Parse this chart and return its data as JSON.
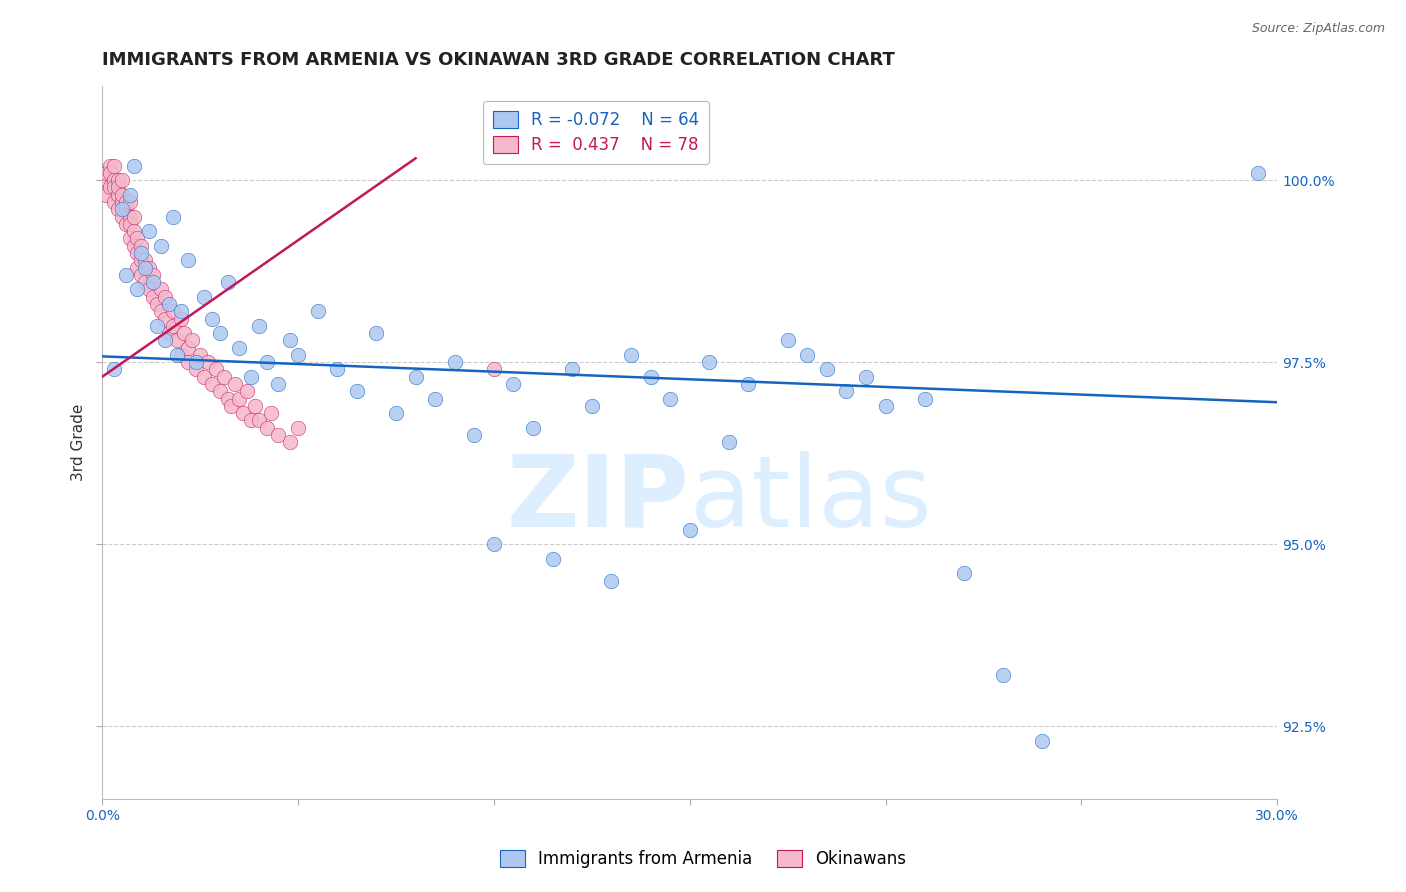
{
  "title": "IMMIGRANTS FROM ARMENIA VS OKINAWAN 3RD GRADE CORRELATION CHART",
  "source_text": "Source: ZipAtlas.com",
  "ylabel": "3rd Grade",
  "xlim": [
    0.0,
    0.3
  ],
  "ylim": [
    91.5,
    101.3
  ],
  "xticks": [
    0.0,
    0.05,
    0.1,
    0.15,
    0.2,
    0.25,
    0.3
  ],
  "xtick_labels": [
    "0.0%",
    "",
    "",
    "",
    "",
    "",
    "30.0%"
  ],
  "ytick_positions": [
    92.5,
    95.0,
    97.5,
    100.0
  ],
  "ytick_labels": [
    "92.5%",
    "95.0%",
    "97.5%",
    "100.0%"
  ],
  "blue_scatter_x": [
    0.003,
    0.005,
    0.006,
    0.007,
    0.008,
    0.009,
    0.01,
    0.011,
    0.012,
    0.013,
    0.014,
    0.015,
    0.016,
    0.017,
    0.018,
    0.019,
    0.02,
    0.022,
    0.024,
    0.026,
    0.028,
    0.03,
    0.032,
    0.035,
    0.038,
    0.04,
    0.042,
    0.045,
    0.048,
    0.05,
    0.055,
    0.06,
    0.065,
    0.07,
    0.075,
    0.08,
    0.085,
    0.09,
    0.095,
    0.1,
    0.105,
    0.11,
    0.115,
    0.12,
    0.125,
    0.13,
    0.135,
    0.14,
    0.145,
    0.15,
    0.155,
    0.16,
    0.165,
    0.175,
    0.18,
    0.185,
    0.19,
    0.195,
    0.2,
    0.21,
    0.22,
    0.23,
    0.24,
    0.295
  ],
  "blue_scatter_y": [
    97.4,
    99.6,
    98.7,
    99.8,
    100.2,
    98.5,
    99.0,
    98.8,
    99.3,
    98.6,
    98.0,
    99.1,
    97.8,
    98.3,
    99.5,
    97.6,
    98.2,
    98.9,
    97.5,
    98.4,
    98.1,
    97.9,
    98.6,
    97.7,
    97.3,
    98.0,
    97.5,
    97.2,
    97.8,
    97.6,
    98.2,
    97.4,
    97.1,
    97.9,
    96.8,
    97.3,
    97.0,
    97.5,
    96.5,
    95.0,
    97.2,
    96.6,
    94.8,
    97.4,
    96.9,
    94.5,
    97.6,
    97.3,
    97.0,
    95.2,
    97.5,
    96.4,
    97.2,
    97.8,
    97.6,
    97.4,
    97.1,
    97.3,
    96.9,
    97.0,
    94.6,
    93.2,
    92.3,
    100.1
  ],
  "pink_scatter_x": [
    0.001,
    0.001,
    0.001,
    0.002,
    0.002,
    0.002,
    0.003,
    0.003,
    0.003,
    0.003,
    0.004,
    0.004,
    0.004,
    0.004,
    0.005,
    0.005,
    0.005,
    0.005,
    0.006,
    0.006,
    0.006,
    0.007,
    0.007,
    0.007,
    0.007,
    0.008,
    0.008,
    0.008,
    0.009,
    0.009,
    0.009,
    0.01,
    0.01,
    0.01,
    0.011,
    0.011,
    0.012,
    0.012,
    0.013,
    0.013,
    0.014,
    0.015,
    0.015,
    0.016,
    0.016,
    0.017,
    0.018,
    0.018,
    0.019,
    0.02,
    0.02,
    0.021,
    0.022,
    0.022,
    0.023,
    0.024,
    0.025,
    0.026,
    0.027,
    0.028,
    0.029,
    0.03,
    0.031,
    0.032,
    0.033,
    0.034,
    0.035,
    0.036,
    0.037,
    0.038,
    0.039,
    0.04,
    0.042,
    0.043,
    0.045,
    0.048,
    0.05,
    0.1
  ],
  "pink_scatter_y": [
    100.0,
    99.8,
    100.1,
    100.2,
    99.9,
    100.1,
    100.0,
    99.7,
    99.9,
    100.2,
    99.8,
    100.0,
    99.6,
    99.9,
    99.7,
    99.5,
    99.8,
    100.0,
    99.6,
    99.4,
    99.7,
    99.5,
    99.2,
    99.4,
    99.7,
    99.3,
    99.1,
    99.5,
    99.0,
    98.8,
    99.2,
    98.9,
    98.7,
    99.1,
    98.6,
    98.9,
    98.5,
    98.8,
    98.4,
    98.7,
    98.3,
    98.5,
    98.2,
    98.4,
    98.1,
    97.9,
    98.2,
    98.0,
    97.8,
    98.1,
    97.6,
    97.9,
    97.7,
    97.5,
    97.8,
    97.4,
    97.6,
    97.3,
    97.5,
    97.2,
    97.4,
    97.1,
    97.3,
    97.0,
    96.9,
    97.2,
    97.0,
    96.8,
    97.1,
    96.7,
    96.9,
    96.7,
    96.6,
    96.8,
    96.5,
    96.4,
    96.6,
    97.4
  ],
  "blue_line_x": [
    0.0,
    0.3
  ],
  "blue_line_y": [
    97.58,
    96.95
  ],
  "pink_line_x": [
    0.0,
    0.08
  ],
  "pink_line_y": [
    97.3,
    100.3
  ],
  "legend_blue_r": "-0.072",
  "legend_blue_n": "64",
  "legend_pink_r": "0.437",
  "legend_pink_n": "78",
  "blue_dot_color": "#adc8f0",
  "pink_dot_color": "#f5b8cb",
  "blue_line_color": "#1565c0",
  "pink_line_color": "#c2185b",
  "grid_color": "#cccccc",
  "watermark_color": "#ddeeff",
  "right_axis_color": "#1565c0",
  "title_fontsize": 13,
  "axis_label_fontsize": 11,
  "tick_fontsize": 10,
  "legend_fontsize": 12
}
